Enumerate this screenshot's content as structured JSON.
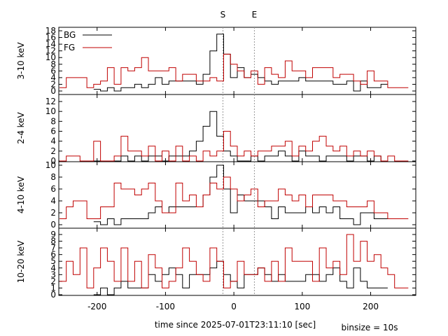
{
  "chart_data": {
    "type": "line",
    "drawstyle": "steps",
    "xlabel": "time since 2025-07-01T23:11:10 [sec]",
    "binsize_note": "binsize = 10s",
    "xlim": [
      -256,
      266
    ],
    "x_ticks": [
      -200,
      -100,
      0,
      100,
      200
    ],
    "x_tick_labels": [
      "-200",
      "-100",
      "0",
      "100",
      "200"
    ],
    "markers": [
      {
        "label": "S",
        "x": -16
      },
      {
        "label": "E",
        "x": 30
      }
    ],
    "legend": {
      "placement": "top-left",
      "entries": [
        "BG",
        "FG"
      ]
    },
    "colors": {
      "BG": "#000000",
      "FG": "#c00000",
      "marker": "#999999"
    },
    "panels": [
      {
        "ylabel": "3-10 keV",
        "ylim": [
          0,
          18
        ],
        "y_ticks": [
          0,
          2,
          4,
          6,
          8,
          10,
          12,
          14,
          16,
          18
        ],
        "series": [
          {
            "name": "BG",
            "x": [
              -200,
              -190,
              -180,
              -170,
              -160,
              -150,
              -140,
              -130,
              -120,
              -110,
              -100,
              -90,
              -80,
              -70,
              -60,
              -50,
              -40,
              -30,
              -20,
              -10,
              0,
              10,
              20,
              30,
              40,
              50,
              60,
              70,
              80,
              90,
              100,
              110,
              120,
              130,
              140,
              150,
              160,
              170,
              180,
              190,
              200,
              210,
              220
            ],
            "y": [
              0.5,
              0,
              1,
              0,
              1,
              1,
              2,
              1,
              2,
              4,
              2,
              3,
              3,
              3,
              3,
              2,
              5,
              12,
              17,
              11,
              4,
              7,
              4,
              5,
              4,
              3,
              2,
              3,
              3,
              3,
              4,
              3,
              3,
              3,
              3,
              2,
              2,
              3,
              0,
              3,
              1,
              1,
              2
            ]
          },
          {
            "name": "FG",
            "x": [
              -250,
              -240,
              -230,
              -220,
              -210,
              -200,
              -190,
              -180,
              -170,
              -160,
              -150,
              -140,
              -130,
              -120,
              -110,
              -100,
              -90,
              -80,
              -70,
              -60,
              -50,
              -40,
              -30,
              -20,
              -10,
              0,
              10,
              20,
              30,
              40,
              50,
              60,
              70,
              80,
              90,
              100,
              110,
              120,
              130,
              140,
              150,
              160,
              170,
              180,
              190,
              200,
              210,
              220,
              230,
              240,
              250
            ],
            "y": [
              1,
              4,
              4,
              4,
              1,
              2,
              3,
              7,
              2,
              7,
              6,
              7,
              10,
              6,
              6,
              6,
              7,
              3,
              5,
              5,
              3,
              3,
              4,
              3,
              11,
              8,
              6,
              4,
              6,
              2,
              7,
              5,
              4,
              9,
              6,
              6,
              4,
              7,
              7,
              7,
              4,
              5,
              5,
              3,
              2,
              6,
              3,
              3,
              1,
              1,
              1
            ]
          }
        ]
      },
      {
        "ylabel": "2-4 keV",
        "ylim": [
          0,
          12
        ],
        "y_ticks": [
          0,
          2,
          4,
          6,
          8,
          10,
          12
        ],
        "series": [
          {
            "name": "BG",
            "x": [
              -200,
              -190,
              -180,
              -170,
              -160,
              -150,
              -140,
              -130,
              -120,
              -110,
              -100,
              -90,
              -80,
              -70,
              -60,
              -50,
              -40,
              -30,
              -20,
              -10,
              0,
              10,
              20,
              30,
              40,
              50,
              60,
              70,
              80,
              90,
              100,
              110,
              120,
              130,
              140,
              150,
              160,
              170,
              180,
              190,
              200,
              210,
              220
            ],
            "y": [
              0,
              0,
              0,
              0,
              1,
              0,
              1,
              0,
              1,
              1,
              0,
              1,
              1,
              1,
              2,
              4,
              7,
              10,
              5,
              2,
              1,
              0,
              0,
              1,
              0,
              1,
              1,
              2,
              1,
              0,
              2,
              1,
              1,
              0,
              1,
              1,
              1,
              0,
              1,
              1,
              0,
              1,
              0
            ]
          },
          {
            "name": "FG",
            "x": [
              -250,
              -240,
              -230,
              -220,
              -210,
              -200,
              -190,
              -180,
              -170,
              -160,
              -150,
              -140,
              -130,
              -120,
              -110,
              -100,
              -90,
              -80,
              -70,
              -60,
              -50,
              -40,
              -30,
              -20,
              -10,
              0,
              10,
              20,
              30,
              40,
              50,
              60,
              70,
              80,
              90,
              100,
              110,
              120,
              130,
              140,
              150,
              160,
              170,
              180,
              190,
              200,
              210,
              220,
              230,
              240,
              250
            ],
            "y": [
              0,
              1,
              1,
              0,
              0,
              4,
              0,
              0,
              1,
              5,
              2,
              2,
              1,
              3,
              0,
              2,
              0,
              3,
              0,
              1,
              0,
              2,
              1,
              2,
              6,
              3,
              1,
              2,
              1,
              2,
              2,
              3,
              3,
              4,
              1,
              3,
              2,
              4,
              5,
              3,
              2,
              3,
              1,
              2,
              1,
              2,
              1,
              0,
              1,
              0,
              0
            ]
          }
        ]
      },
      {
        "ylabel": "4-10 keV",
        "ylim": [
          0,
          10
        ],
        "y_ticks": [
          0,
          2,
          4,
          6,
          8,
          10
        ],
        "series": [
          {
            "name": "BG",
            "x": [
              -200,
              -190,
              -180,
              -170,
              -160,
              -150,
              -140,
              -130,
              -120,
              -110,
              -100,
              -90,
              -80,
              -70,
              -60,
              -50,
              -40,
              -30,
              -20,
              -10,
              0,
              10,
              20,
              30,
              40,
              50,
              60,
              70,
              80,
              90,
              100,
              110,
              120,
              130,
              140,
              150,
              160,
              170,
              180,
              190,
              200,
              210,
              220
            ],
            "y": [
              0.5,
              0,
              1,
              0,
              1,
              1,
              1,
              1,
              2,
              3,
              2,
              3,
              3,
              3,
              3,
              3,
              5,
              8,
              10,
              6,
              2,
              5,
              4,
              4,
              4,
              3,
              1,
              3,
              2,
              2,
              2,
              3,
              2,
              3,
              2,
              3,
              1,
              1,
              0,
              2,
              2,
              1,
              1
            ]
          },
          {
            "name": "FG",
            "x": [
              -250,
              -240,
              -230,
              -220,
              -210,
              -200,
              -190,
              -180,
              -170,
              -160,
              -150,
              -140,
              -130,
              -120,
              -110,
              -100,
              -90,
              -80,
              -70,
              -60,
              -50,
              -40,
              -30,
              -20,
              -10,
              0,
              10,
              20,
              30,
              40,
              50,
              60,
              70,
              80,
              90,
              100,
              110,
              120,
              130,
              140,
              150,
              160,
              170,
              180,
              190,
              200,
              210,
              220,
              230,
              240,
              250
            ],
            "y": [
              1,
              3,
              4,
              4,
              1,
              1,
              3,
              3,
              7,
              6,
              6,
              5,
              6,
              7,
              4,
              2,
              2,
              7,
              4,
              5,
              3,
              5,
              7,
              6,
              8,
              6,
              4,
              5,
              6,
              3,
              4,
              4,
              6,
              5,
              4,
              5,
              3,
              5,
              5,
              5,
              4,
              4,
              3,
              3,
              3,
              4,
              2,
              2,
              1,
              1,
              1
            ]
          }
        ]
      },
      {
        "ylabel": "10-20 keV",
        "ylim": [
          0,
          9
        ],
        "y_ticks": [
          0,
          1,
          2,
          3,
          4,
          5,
          6,
          7,
          8,
          9
        ],
        "series": [
          {
            "name": "BG",
            "x": [
              -200,
              -190,
              -180,
              -170,
              -160,
              -150,
              -140,
              -130,
              -120,
              -110,
              -100,
              -90,
              -80,
              -70,
              -60,
              -50,
              -40,
              -30,
              -20,
              -10,
              0,
              10,
              20,
              30,
              40,
              50,
              60,
              70,
              80,
              90,
              100,
              110,
              120,
              130,
              140,
              150,
              160,
              170,
              180,
              190,
              200,
              210,
              220
            ],
            "y": [
              0,
              1,
              0,
              1,
              2,
              1,
              1,
              1,
              3,
              2,
              3,
              4,
              3,
              1,
              3,
              3,
              3,
              4,
              5,
              3,
              2,
              1,
              3,
              3,
              4,
              3,
              2,
              3,
              2,
              2,
              2,
              3,
              3,
              2,
              3,
              4,
              2,
              1,
              4,
              2,
              1,
              1,
              1
            ]
          },
          {
            "name": "FG",
            "x": [
              -250,
              -240,
              -230,
              -220,
              -210,
              -200,
              -190,
              -180,
              -170,
              -160,
              -150,
              -140,
              -130,
              -120,
              -110,
              -100,
              -90,
              -80,
              -70,
              -60,
              -50,
              -40,
              -30,
              -20,
              -10,
              0,
              10,
              20,
              30,
              40,
              50,
              60,
              70,
              80,
              90,
              100,
              110,
              120,
              130,
              140,
              150,
              160,
              170,
              180,
              190,
              200,
              210,
              220,
              230,
              240,
              250
            ],
            "y": [
              2,
              5,
              3,
              7,
              1,
              4,
              7,
              5,
              2,
              7,
              2,
              5,
              1,
              6,
              4,
              1,
              2,
              4,
              7,
              5,
              3,
              2,
              7,
              5,
              1,
              2,
              5,
              3,
              3,
              4,
              2,
              5,
              2,
              7,
              5,
              5,
              5,
              2,
              7,
              4,
              5,
              3,
              9,
              5,
              8,
              5,
              6,
              4,
              3,
              1,
              1
            ]
          }
        ]
      }
    ]
  }
}
